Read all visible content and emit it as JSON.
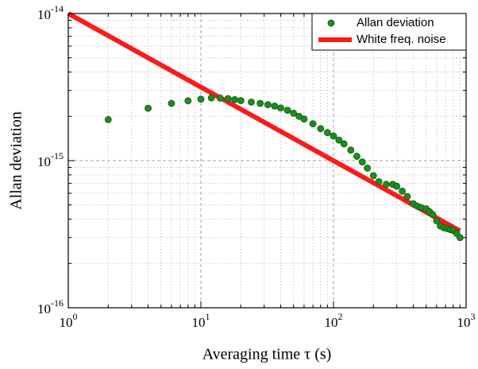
{
  "chart_data": {
    "type": "scatter",
    "xlabel": "Averaging time τ (s)",
    "ylabel": "Allan deviation",
    "log_x": true,
    "log_y": true,
    "grid": true,
    "minor_grid": true,
    "legend": "upper right",
    "xlim": [
      1,
      1000
    ],
    "ylim": [
      1e-16,
      1e-14
    ],
    "xticks": [
      {
        "value": 1,
        "label": "100"
      },
      {
        "value": 10,
        "label": "101"
      },
      {
        "value": 100,
        "label": "102"
      },
      {
        "value": 1000,
        "label": "103"
      }
    ],
    "yticks": [
      {
        "value": 1e-16,
        "label": "10-16"
      },
      {
        "value": 1e-15,
        "label": "10-15"
      },
      {
        "value": 1e-14,
        "label": "10-14"
      }
    ],
    "series": [
      {
        "name": "Allan deviation",
        "kind": "points",
        "color": "#1e8c1e",
        "x": [
          2,
          4,
          6,
          8,
          10,
          12,
          14,
          16,
          18,
          20,
          24,
          28,
          32,
          36,
          40,
          45,
          50,
          55,
          60,
          70,
          80,
          90,
          100,
          110,
          120,
          135,
          150,
          165,
          180,
          200,
          220,
          250,
          280,
          300,
          330,
          360,
          400,
          430,
          460,
          500,
          530,
          560,
          600,
          640,
          680,
          720,
          760,
          800,
          850,
          900
        ],
        "values": [
          1.9e-15,
          2.27e-15,
          2.45e-15,
          2.55e-15,
          2.62e-15,
          2.67e-15,
          2.66e-15,
          2.64e-15,
          2.6e-15,
          2.56e-15,
          2.5e-15,
          2.45e-15,
          2.4e-15,
          2.35e-15,
          2.28e-15,
          2.2e-15,
          2.1e-15,
          2e-15,
          1.92e-15,
          1.78e-15,
          1.65e-15,
          1.55e-15,
          1.47e-15,
          1.38e-15,
          1.3e-15,
          1.18e-15,
          1.07e-15,
          9.8e-16,
          8.9e-16,
          7.9e-16,
          7.2e-16,
          6.9e-16,
          6.9e-16,
          6.7e-16,
          6.2e-16,
          5.7e-16,
          5.1e-16,
          4.9e-16,
          4.8e-16,
          4.7e-16,
          4.5e-16,
          4.3e-16,
          3.9e-16,
          3.6e-16,
          3.5e-16,
          3.45e-16,
          3.4e-16,
          3.35e-16,
          3.2e-16,
          3e-16
        ]
      },
      {
        "name": "White freq. noise",
        "kind": "line",
        "color": "#ff1a1a",
        "x": [
          1,
          900
        ],
        "values": [
          1e-14,
          3.33e-16
        ]
      }
    ]
  }
}
